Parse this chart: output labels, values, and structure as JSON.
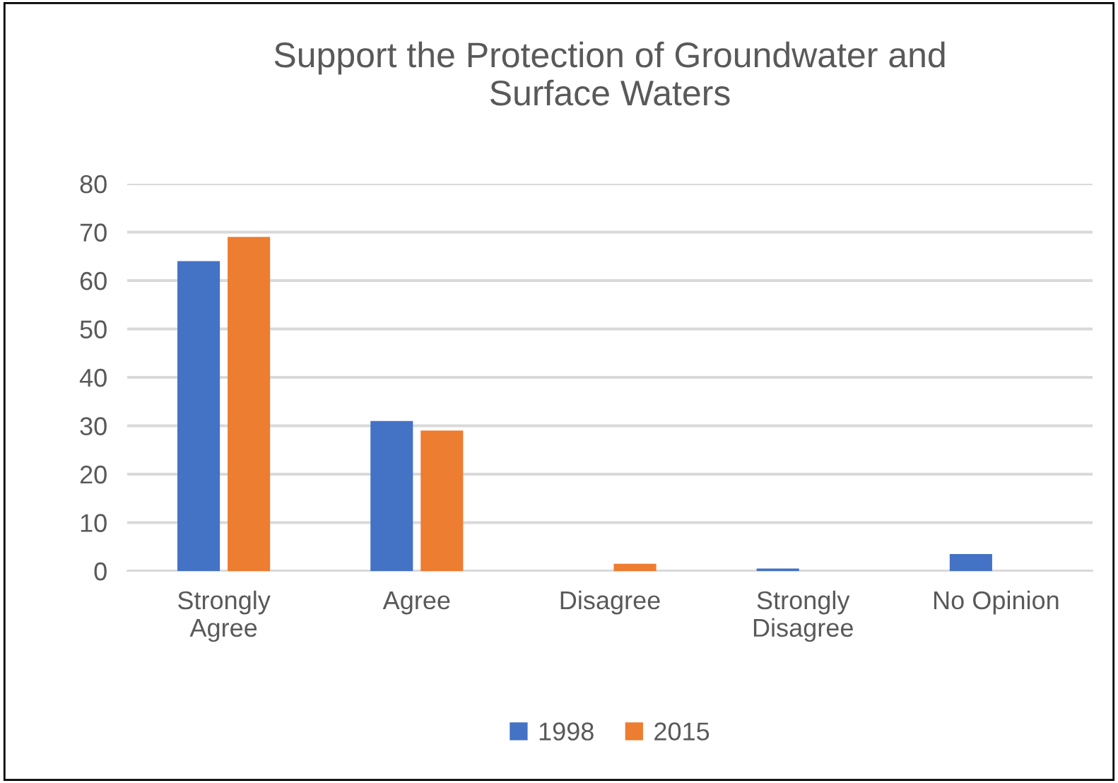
{
  "chart_data": {
    "type": "bar",
    "title": "Support the Protection of Groundwater and\nSurface Waters",
    "categories": [
      "Strongly\nAgree",
      "Agree",
      "Disagree",
      "Strongly\nDisagree",
      "No Opinion"
    ],
    "series": [
      {
        "name": "1998",
        "color": "#4472c4",
        "values": [
          64,
          31,
          0,
          0.5,
          3.5
        ]
      },
      {
        "name": "2015",
        "color": "#ed7d31",
        "values": [
          69,
          29,
          1.5,
          0,
          0
        ]
      }
    ],
    "ylim": [
      0,
      80
    ],
    "yticks": [
      0,
      10,
      20,
      30,
      40,
      50,
      60,
      70,
      80
    ],
    "grid": "y",
    "legend": "bottom"
  }
}
